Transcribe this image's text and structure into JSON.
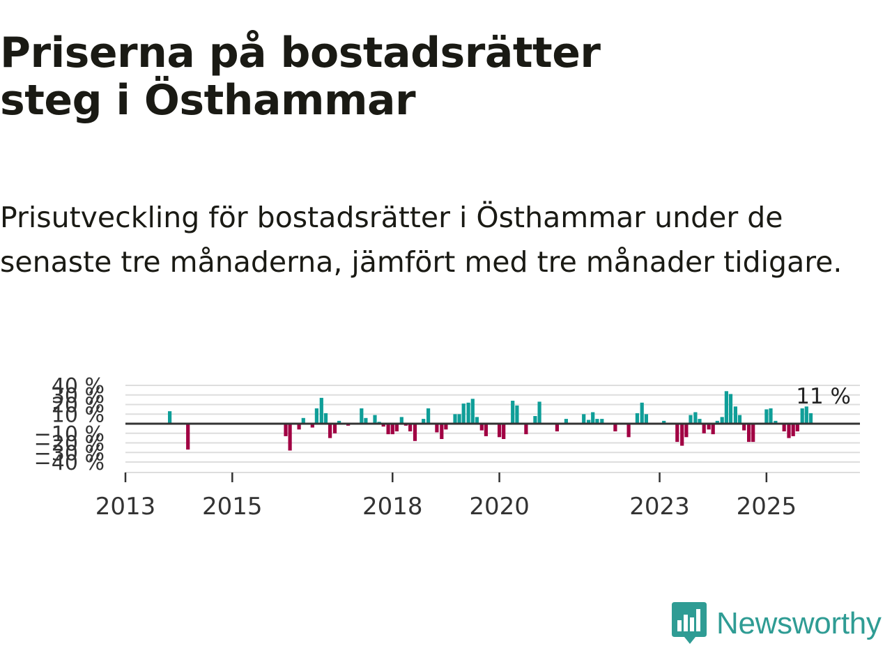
{
  "header": {
    "title": "Priserna på bostadsrätter steg i Östhammar",
    "subtitle": "Prisutveckling för bostadsrätter i Östhammar under de senaste tre månaderna, jämfört med tre månader tidigare."
  },
  "brand": {
    "name": "Newsworthy",
    "color": "#2f9c94"
  },
  "colors": {
    "positive": "#0f9e98",
    "negative": "#a10043",
    "zero_line": "#333333",
    "grid": "#dddddd"
  },
  "chart_data": {
    "type": "bar",
    "title": "Priserna på bostadsrätter steg i Östhammar",
    "xlabel": "",
    "ylabel": "",
    "unit": "%",
    "ylim": [
      -40,
      40
    ],
    "yticks": [
      {
        "value": 40,
        "label": "40 %"
      },
      {
        "value": 30,
        "label": "30 %"
      },
      {
        "value": 20,
        "label": "20 %"
      },
      {
        "value": 10,
        "label": "10 %"
      },
      {
        "value": -10,
        "label": "−10 %"
      },
      {
        "value": -20,
        "label": "−20 %"
      },
      {
        "value": -30,
        "label": "−30 %"
      },
      {
        "value": -40,
        "label": "−40 %"
      }
    ],
    "xlim": [
      2013.0,
      2026.75
    ],
    "xticks": [
      {
        "value": 2013,
        "label": "2013"
      },
      {
        "value": 2015,
        "label": "2015"
      },
      {
        "value": 2018,
        "label": "2018"
      },
      {
        "value": 2020,
        "label": "2020"
      },
      {
        "value": 2023,
        "label": "2023"
      },
      {
        "value": 2025,
        "label": "2025"
      }
    ],
    "last_value_label": "11 %",
    "points": [
      {
        "x": 2013.83,
        "y": 13
      },
      {
        "x": 2014.17,
        "y": -27
      },
      {
        "x": 2016.0,
        "y": -13
      },
      {
        "x": 2016.08,
        "y": -28
      },
      {
        "x": 2016.25,
        "y": -6
      },
      {
        "x": 2016.33,
        "y": 6
      },
      {
        "x": 2016.5,
        "y": -4
      },
      {
        "x": 2016.58,
        "y": 16
      },
      {
        "x": 2016.67,
        "y": 27
      },
      {
        "x": 2016.75,
        "y": 11
      },
      {
        "x": 2016.83,
        "y": -15
      },
      {
        "x": 2016.92,
        "y": -10
      },
      {
        "x": 2017.0,
        "y": 3
      },
      {
        "x": 2017.17,
        "y": -2
      },
      {
        "x": 2017.25,
        "y": -1
      },
      {
        "x": 2017.42,
        "y": 16
      },
      {
        "x": 2017.5,
        "y": 6
      },
      {
        "x": 2017.67,
        "y": 9
      },
      {
        "x": 2017.75,
        "y": 2
      },
      {
        "x": 2017.83,
        "y": -3
      },
      {
        "x": 2017.92,
        "y": -11
      },
      {
        "x": 2018.0,
        "y": -11
      },
      {
        "x": 2018.08,
        "y": -8
      },
      {
        "x": 2018.17,
        "y": 7
      },
      {
        "x": 2018.25,
        "y": -2
      },
      {
        "x": 2018.33,
        "y": -8
      },
      {
        "x": 2018.42,
        "y": -18
      },
      {
        "x": 2018.58,
        "y": 5
      },
      {
        "x": 2018.67,
        "y": 16
      },
      {
        "x": 2018.83,
        "y": -9
      },
      {
        "x": 2018.92,
        "y": -16
      },
      {
        "x": 2019.0,
        "y": -6
      },
      {
        "x": 2019.17,
        "y": 10
      },
      {
        "x": 2019.25,
        "y": 10
      },
      {
        "x": 2019.33,
        "y": 21
      },
      {
        "x": 2019.42,
        "y": 22
      },
      {
        "x": 2019.5,
        "y": 26
      },
      {
        "x": 2019.58,
        "y": 7
      },
      {
        "x": 2019.67,
        "y": -7
      },
      {
        "x": 2019.75,
        "y": -13
      },
      {
        "x": 2020.0,
        "y": -14
      },
      {
        "x": 2020.08,
        "y": -16
      },
      {
        "x": 2020.25,
        "y": 24
      },
      {
        "x": 2020.33,
        "y": 19
      },
      {
        "x": 2020.5,
        "y": -11
      },
      {
        "x": 2020.67,
        "y": 8
      },
      {
        "x": 2020.75,
        "y": 23
      },
      {
        "x": 2021.08,
        "y": -8
      },
      {
        "x": 2021.25,
        "y": 5
      },
      {
        "x": 2021.33,
        "y": 1
      },
      {
        "x": 2021.58,
        "y": 10
      },
      {
        "x": 2021.67,
        "y": 4
      },
      {
        "x": 2021.75,
        "y": 12
      },
      {
        "x": 2021.83,
        "y": 5
      },
      {
        "x": 2021.92,
        "y": 5
      },
      {
        "x": 2022.17,
        "y": -8
      },
      {
        "x": 2022.42,
        "y": -14
      },
      {
        "x": 2022.58,
        "y": 11
      },
      {
        "x": 2022.67,
        "y": 22
      },
      {
        "x": 2022.75,
        "y": 10
      },
      {
        "x": 2023.08,
        "y": 3
      },
      {
        "x": 2023.33,
        "y": -19
      },
      {
        "x": 2023.42,
        "y": -23
      },
      {
        "x": 2023.5,
        "y": -14
      },
      {
        "x": 2023.58,
        "y": 9
      },
      {
        "x": 2023.67,
        "y": 12
      },
      {
        "x": 2023.75,
        "y": 5
      },
      {
        "x": 2023.83,
        "y": -10
      },
      {
        "x": 2023.92,
        "y": -6
      },
      {
        "x": 2024.0,
        "y": -11
      },
      {
        "x": 2024.08,
        "y": 3
      },
      {
        "x": 2024.17,
        "y": 7
      },
      {
        "x": 2024.25,
        "y": 34
      },
      {
        "x": 2024.33,
        "y": 31
      },
      {
        "x": 2024.42,
        "y": 18
      },
      {
        "x": 2024.5,
        "y": 9
      },
      {
        "x": 2024.58,
        "y": -7
      },
      {
        "x": 2024.67,
        "y": -19
      },
      {
        "x": 2024.75,
        "y": -19
      },
      {
        "x": 2025.0,
        "y": 15
      },
      {
        "x": 2025.08,
        "y": 16
      },
      {
        "x": 2025.17,
        "y": 3
      },
      {
        "x": 2025.33,
        "y": -8
      },
      {
        "x": 2025.42,
        "y": -15
      },
      {
        "x": 2025.5,
        "y": -13
      },
      {
        "x": 2025.58,
        "y": -8
      },
      {
        "x": 2025.67,
        "y": 16
      },
      {
        "x": 2025.75,
        "y": 18
      },
      {
        "x": 2025.83,
        "y": 11
      }
    ]
  }
}
